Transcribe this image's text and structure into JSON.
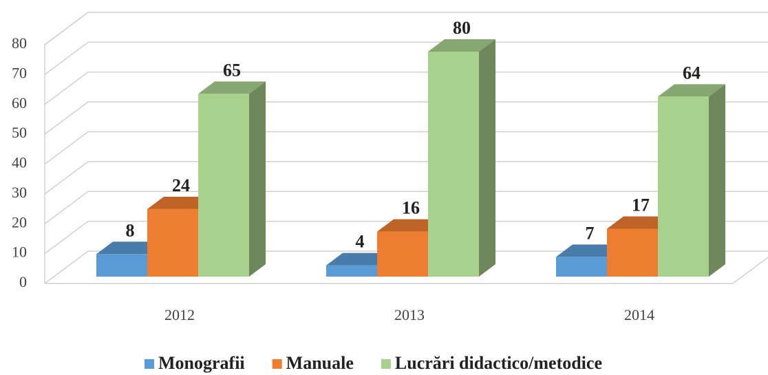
{
  "chart_data": {
    "type": "bar3d",
    "categories": [
      "2012",
      "2013",
      "2014"
    ],
    "series": [
      {
        "name": "Monografii",
        "color": "#5b9bd5",
        "values": [
          8,
          4,
          7
        ]
      },
      {
        "name": "Manuale",
        "color": "#ed7d31",
        "values": [
          24,
          16,
          17
        ]
      },
      {
        "name": "Lucrări didactico/metodice",
        "color": "#a9d18e",
        "values": [
          65,
          80,
          64
        ]
      }
    ],
    "ylim": [
      0,
      80
    ],
    "yticks": [
      0,
      10,
      20,
      30,
      40,
      50,
      60,
      70,
      80
    ],
    "grid": true,
    "legend": "bottom"
  }
}
